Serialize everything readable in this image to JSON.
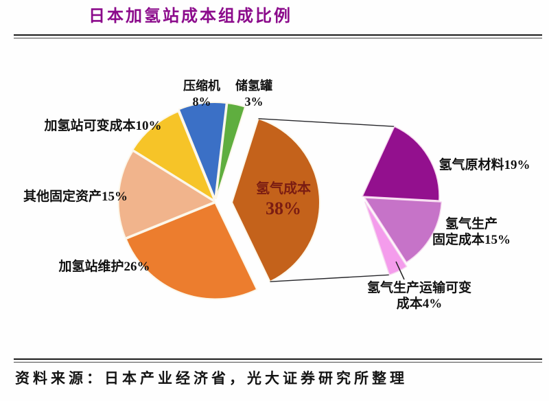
{
  "page": {
    "title": "日本加氢站成本组成比例",
    "source": "资料来源：日本产业经济省，光大证券研究所整理",
    "title_color": "#8b0a8b"
  },
  "chart_data": {
    "type": "pie",
    "subtype": "pie-of-pie",
    "title": "日本加氢站成本组成比例",
    "source": "资料来源：日本产业经济省，光大证券研究所整理",
    "unit": "%",
    "legend_position": "none",
    "main_pie": {
      "slices": [
        {
          "id": "hydrogen-cost",
          "label": "氢气成本",
          "value": 38,
          "color": "#c4621b",
          "exploded": true
        },
        {
          "id": "station-maintenance",
          "label": "加氢站维护",
          "value": 26,
          "color": "#ec7d2e",
          "exploded": false
        },
        {
          "id": "other-fixed-assets",
          "label": "其他固定资产",
          "value": 15,
          "color": "#f1b48c",
          "exploded": false
        },
        {
          "id": "station-variable-cost",
          "label": "加氢站可变成本",
          "value": 10,
          "color": "#f6c428",
          "exploded": false
        },
        {
          "id": "compressor",
          "label": "压缩机",
          "value": 8,
          "color": "#3b70c6",
          "exploded": false
        },
        {
          "id": "storage-tank",
          "label": "储氢罐",
          "value": 3,
          "color": "#5fae3f",
          "exploded": false
        }
      ]
    },
    "breakout_pie": {
      "parent": "氢气成本",
      "slices": [
        {
          "id": "raw-material",
          "label": "氢气原材料",
          "value": 19,
          "color": "#93108e"
        },
        {
          "id": "production-fixed-cost",
          "label": "氢气生产固定成本",
          "value": 15,
          "color": "#c673c8"
        },
        {
          "id": "transport-variable-cost",
          "label": "氢气生产运输可变成本",
          "value": 4,
          "color": "#f49cec"
        }
      ]
    }
  },
  "labels": {
    "compressor": {
      "line1": "压缩机",
      "line2": "8%"
    },
    "storage_tank": {
      "line1": "储氢罐",
      "line2": "3%"
    },
    "station_variable": {
      "text": "加氢站可变成本10%"
    },
    "other_fixed": {
      "text": "其他固定资产15%"
    },
    "maintenance": {
      "text": "加氢站维护26%"
    },
    "hydrogen_cost": {
      "line1": "氢气成本",
      "line2": "38%"
    },
    "raw_material": {
      "text": "氢气原材料19%"
    },
    "production_fixed": {
      "line1": "氢气生产",
      "line2": "固定成本15%"
    },
    "transport_variable": {
      "line1": "氢气生产运输可变",
      "line2": "成本4%"
    }
  }
}
